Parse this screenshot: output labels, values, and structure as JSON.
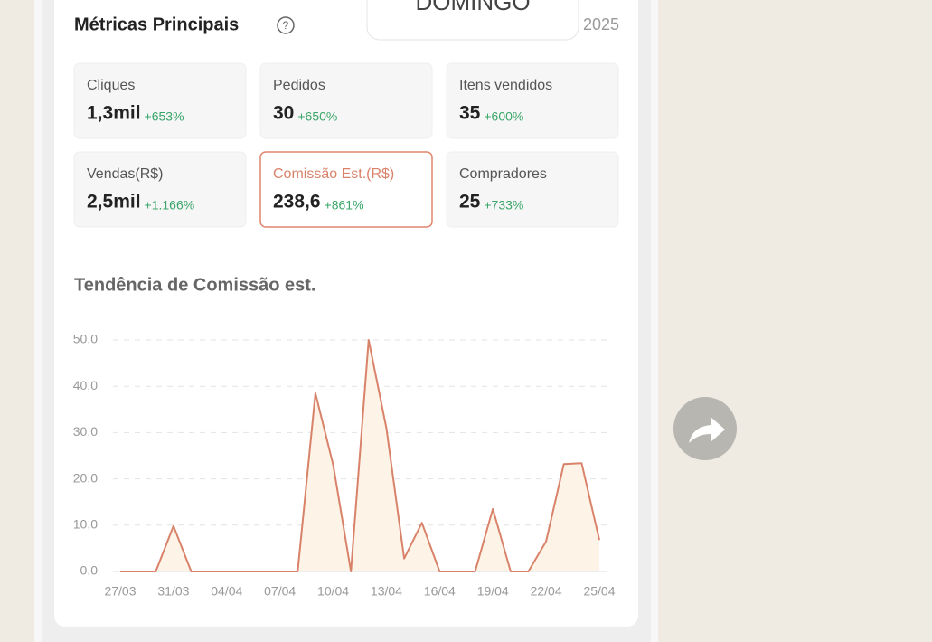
{
  "header": {
    "title": "Métricas Principais",
    "overlay": "DOMINGO",
    "year": "2025"
  },
  "metrics": [
    {
      "label": "Cliques",
      "value": "1,3mil",
      "change": "+653%"
    },
    {
      "label": "Pedidos",
      "value": "30",
      "change": "+650%"
    },
    {
      "label": "Itens vendidos",
      "value": "35",
      "change": "+600%"
    },
    {
      "label": "Vendas(R$)",
      "value": "2,5mil",
      "change": "+1.166%"
    },
    {
      "label": "Comissão Est.(R$)",
      "value": "238,6",
      "change": "+861%"
    },
    {
      "label": "Compradores",
      "value": "25",
      "change": "+733%"
    }
  ],
  "chart_data": {
    "type": "area",
    "title": "Tendência de Comissão est.",
    "categories": [
      "27/03",
      null,
      null,
      "31/03",
      null,
      null,
      "04/04",
      null,
      null,
      "07/04",
      null,
      null,
      "10/04",
      null,
      null,
      "13/04",
      null,
      null,
      "16/04",
      null,
      null,
      "19/04",
      null,
      null,
      "22/04",
      null,
      null,
      "25/04"
    ],
    "values": [
      0,
      0,
      0,
      9.8,
      0,
      0,
      0,
      0,
      0,
      0,
      0,
      38.5,
      23,
      0,
      50,
      31,
      2.8,
      10.5,
      0,
      0,
      0,
      13.5,
      0,
      0,
      6.5,
      23.2,
      23.4,
      6.8
    ],
    "color": "#d9826a",
    "fill_color": "#fdf4e7",
    "ylim": [
      0,
      50
    ],
    "yticks": [
      {
        "value": 0,
        "label": "0,0"
      },
      {
        "value": 10,
        "label": "10,0"
      },
      {
        "value": 20,
        "label": "20,0"
      },
      {
        "value": 30,
        "label": "30,0"
      },
      {
        "value": 40,
        "label": "40,0"
      },
      {
        "value": 50,
        "label": "50,0"
      }
    ],
    "grid": true
  }
}
